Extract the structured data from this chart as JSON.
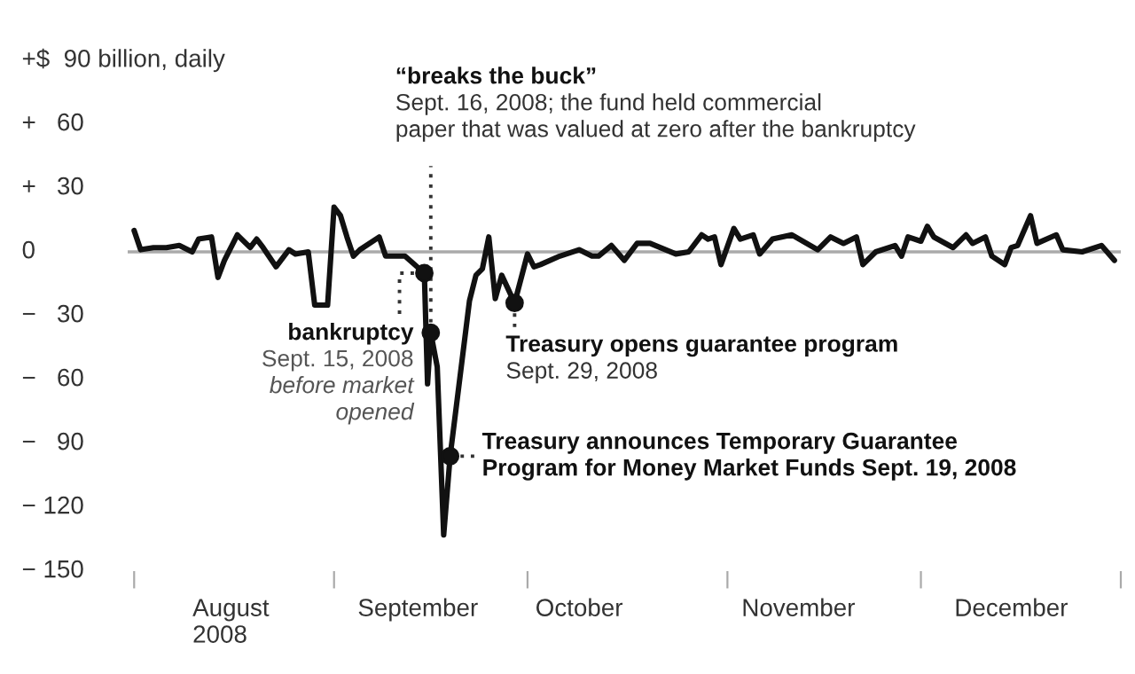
{
  "chart_data": {
    "type": "line",
    "x": [
      "2008-08-01",
      "2008-08-02",
      "2008-08-04",
      "2008-08-06",
      "2008-08-08",
      "2008-08-10",
      "2008-08-11",
      "2008-08-13",
      "2008-08-14",
      "2008-08-15",
      "2008-08-17",
      "2008-08-19",
      "2008-08-20",
      "2008-08-21",
      "2008-08-23",
      "2008-08-25",
      "2008-08-26",
      "2008-08-28",
      "2008-08-29",
      "2008-08-31",
      "2008-09-01",
      "2008-09-02",
      "2008-09-03",
      "2008-09-04",
      "2008-09-05",
      "2008-09-08",
      "2008-09-09",
      "2008-09-12",
      "2008-09-15",
      "2008-09-15T12:00",
      "2008-09-16",
      "2008-09-17",
      "2008-09-18",
      "2008-09-19",
      "2008-09-22",
      "2008-09-23",
      "2008-09-24",
      "2008-09-25",
      "2008-09-26",
      "2008-09-27",
      "2008-09-29",
      "2008-10-01",
      "2008-10-02",
      "2008-10-03",
      "2008-10-06",
      "2008-10-09",
      "2008-10-11",
      "2008-10-12",
      "2008-10-14",
      "2008-10-16",
      "2008-10-18",
      "2008-10-20",
      "2008-10-24",
      "2008-10-26",
      "2008-10-28",
      "2008-10-29",
      "2008-10-30",
      "2008-10-31",
      "2008-11-02",
      "2008-11-03",
      "2008-11-05",
      "2008-11-06",
      "2008-11-08",
      "2008-11-11",
      "2008-11-15",
      "2008-11-17",
      "2008-11-19",
      "2008-11-21",
      "2008-11-22",
      "2008-11-24",
      "2008-11-27",
      "2008-11-28",
      "2008-11-29",
      "2008-12-01",
      "2008-12-02",
      "2008-12-03",
      "2008-12-06",
      "2008-12-08",
      "2008-12-09",
      "2008-12-11",
      "2008-12-12",
      "2008-12-14",
      "2008-12-15",
      "2008-12-16",
      "2008-12-18",
      "2008-12-19",
      "2008-12-22",
      "2008-12-23",
      "2008-12-26",
      "2008-12-29",
      "2008-12-31"
    ],
    "series": [
      {
        "color": "#111111",
        "values": [
          10,
          1,
          2,
          2,
          3,
          0,
          6,
          7,
          -12,
          -4,
          8,
          2,
          6,
          2,
          -7,
          1,
          -1,
          0,
          -25,
          -25,
          21,
          17,
          7,
          -2,
          1,
          7,
          -2,
          -2,
          -10,
          -62,
          -38,
          -54,
          -133,
          -96,
          -23,
          -11,
          -8,
          7,
          -22,
          -11,
          -24,
          -1,
          -7,
          -6,
          -2,
          1,
          -2,
          -2,
          3,
          -4,
          4,
          4,
          -1,
          0,
          8,
          6,
          7,
          -6,
          11,
          6,
          8,
          -1,
          6,
          8,
          1,
          7,
          4,
          7,
          -6,
          0,
          3,
          -2,
          7,
          5,
          12,
          7,
          2,
          8,
          4,
          7,
          -2,
          -6,
          2,
          3,
          17,
          4,
          8,
          1,
          0,
          3,
          -4
        ]
      },
      {
        "type": "scatter",
        "color": "#111111",
        "marker": "circle",
        "x": [
          "2008-09-15",
          "2008-09-16",
          "2008-09-19",
          "2008-09-29"
        ],
        "values": [
          -10,
          -38,
          -96,
          -24
        ]
      }
    ],
    "xlim": [
      "2008-07-31",
      "2009-01-01"
    ],
    "xticks": [
      {
        "value": "2008-08-01",
        "label": null
      },
      {
        "value": "2008-08-16",
        "label": "August\n2008"
      },
      {
        "value": "2008-09-01",
        "label": null
      },
      {
        "value": "2008-09-14",
        "label": "September"
      },
      {
        "value": "2008-10-01",
        "label": null
      },
      {
        "value": "2008-10-09",
        "label": "October"
      },
      {
        "value": "2008-11-01",
        "label": null
      },
      {
        "value": "2008-11-12",
        "label": "November"
      },
      {
        "value": "2008-12-01",
        "label": null
      },
      {
        "value": "2008-12-15",
        "label": "December"
      },
      {
        "value": "2009-01-01",
        "label": null
      }
    ],
    "ylim": [
      -150,
      90
    ],
    "yticks": [
      {
        "value": 90,
        "label": "+$  90 billion, daily"
      },
      {
        "value": 60,
        "label": "+   60"
      },
      {
        "value": 30,
        "label": "+   30"
      },
      {
        "value": 0,
        "label": "0"
      },
      {
        "value": -30,
        "label": "−   30"
      },
      {
        "value": -60,
        "label": "−   60"
      },
      {
        "value": -90,
        "label": "−   90"
      },
      {
        "value": -120,
        "label": "− 120"
      },
      {
        "value": -150,
        "label": "− 150"
      }
    ],
    "ref_lines": [
      {
        "axis": "y",
        "value": 0,
        "color": "#aaaaaa"
      }
    ],
    "marker": "none",
    "line_style": "solid",
    "grid": false,
    "legend": false,
    "annotations": [
      {
        "text": "“breaks the buck”\nSept. 16, 2008; the fund held commercial\npaper that was valued at zero after the bankruptcy",
        "x": "2008-09-16",
        "y": -38
      },
      {
        "text": "bankruptcy\nSept. 15, 2008\nbefore market\nopened",
        "x": "2008-09-15",
        "y": -10
      },
      {
        "text": "Treasury announces Temporary Guarantee\nProgram for Money Market Funds Sept. 19, 2008",
        "x": "2008-09-19",
        "y": -96
      },
      {
        "text": "Treasury opens guarantee program\nSept. 29, 2008",
        "x": "2008-09-29",
        "y": -24
      }
    ]
  }
}
